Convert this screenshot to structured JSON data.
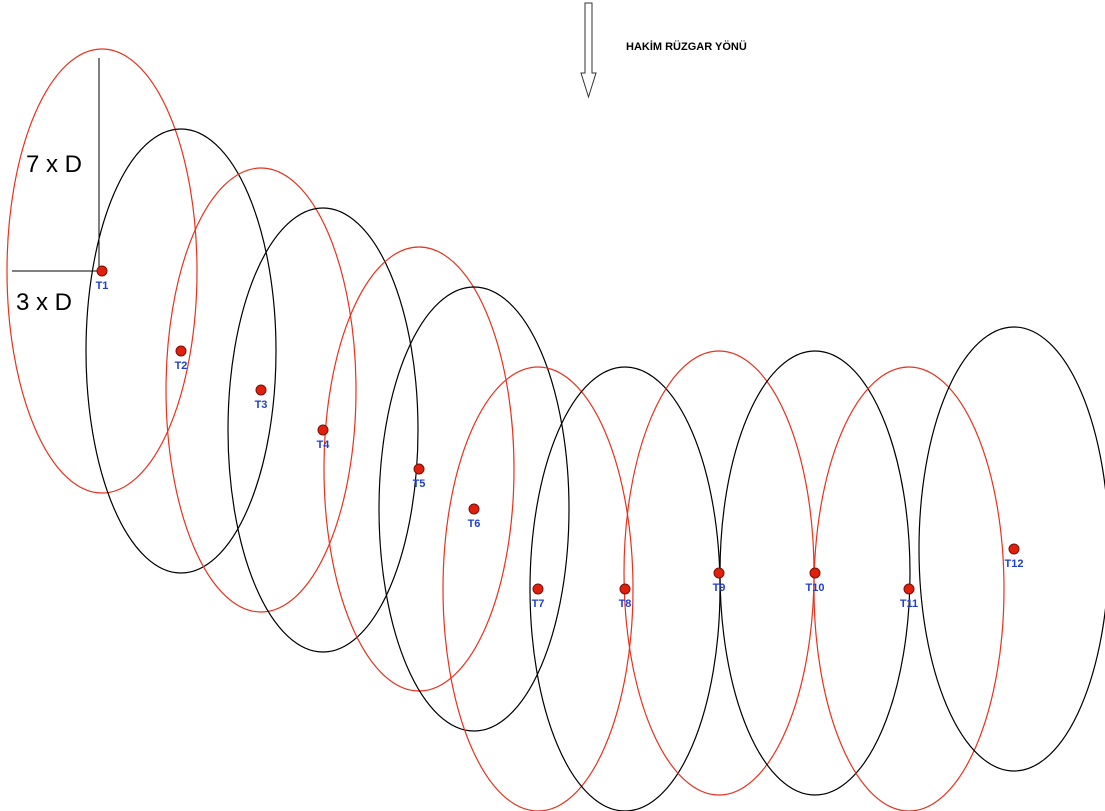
{
  "wind_direction": {
    "label": "HAKİM RÜZGAR YÖNÜ",
    "arrow": "down-arrow-icon"
  },
  "dimensions": {
    "vertical_label": "7 x D",
    "horizontal_label": "3 x D"
  },
  "colors": {
    "ellipse_odd": "#e8321e",
    "ellipse_even": "#000000",
    "turbine_fill": "#e0200c",
    "turbine_label": "#1f3fd1",
    "dimension_line": "#000000"
  },
  "turbines": [
    {
      "label": "T1"
    },
    {
      "label": "T2"
    },
    {
      "label": "T3"
    },
    {
      "label": "T4"
    },
    {
      "label": "T5"
    },
    {
      "label": "T6"
    },
    {
      "label": "T7"
    },
    {
      "label": "T8"
    },
    {
      "label": "T9"
    },
    {
      "label": "T10"
    },
    {
      "label": "T11"
    },
    {
      "label": "T12"
    }
  ]
}
